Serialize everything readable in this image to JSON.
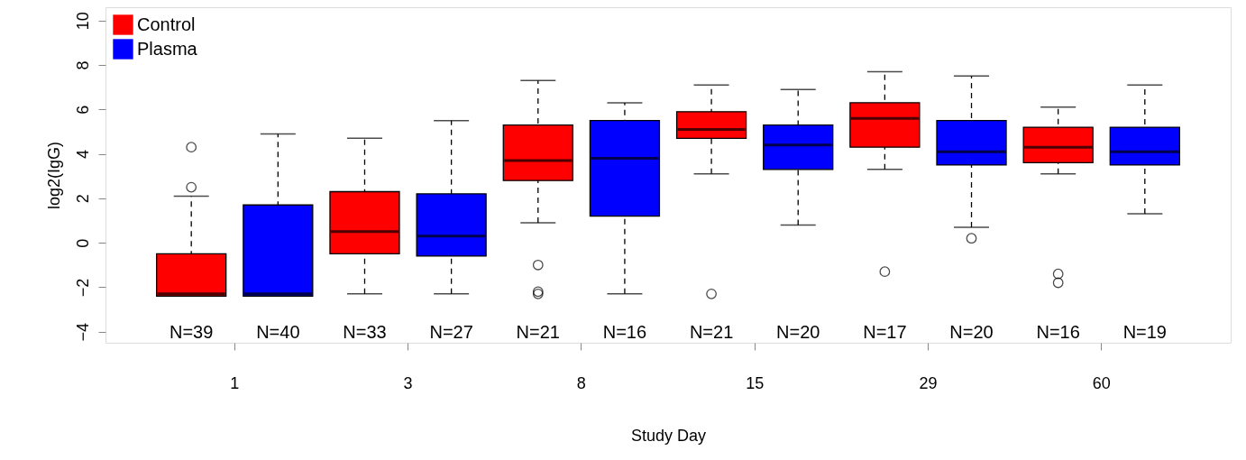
{
  "chart_data": {
    "type": "box",
    "xlabel": "Study Day",
    "ylabel": "log2(IgG)",
    "categories": [
      "1",
      "3",
      "8",
      "15",
      "29",
      "60"
    ],
    "ylim": [
      -4.5,
      10.6
    ],
    "yticks": [
      -4,
      -2,
      0,
      2,
      4,
      6,
      8,
      10
    ],
    "grid": false,
    "legend": "top left",
    "series": [
      {
        "name": "Control",
        "color": "#ff0000",
        "value_labels": [
          "N=39",
          "N=33",
          "N=21",
          "N=21",
          "N=17",
          "N=16"
        ],
        "boxes": [
          {
            "low": -2.4,
            "q1": -2.4,
            "median": -2.3,
            "q3": -0.5,
            "high": 2.1,
            "outliers": [
              4.3,
              2.5
            ]
          },
          {
            "low": -2.3,
            "q1": -0.5,
            "median": 0.5,
            "q3": 2.3,
            "high": 4.7
          },
          {
            "low": 0.9,
            "q1": 2.8,
            "median": 3.7,
            "q3": 5.3,
            "high": 7.3,
            "outliers": [
              -1.0,
              -2.2,
              -2.3
            ]
          },
          {
            "low": 3.1,
            "q1": 4.7,
            "median": 5.1,
            "q3": 5.9,
            "high": 7.1,
            "outliers": [
              -2.3
            ]
          },
          {
            "low": 3.3,
            "q1": 4.3,
            "median": 5.6,
            "q3": 6.3,
            "high": 7.7,
            "outliers": [
              -1.3
            ]
          },
          {
            "low": 3.1,
            "q1": 3.6,
            "median": 4.3,
            "q3": 5.2,
            "high": 6.1,
            "outliers": [
              -1.4,
              -1.8
            ]
          }
        ]
      },
      {
        "name": "Plasma",
        "color": "#0000ff",
        "value_labels": [
          "N=40",
          "N=27",
          "N=16",
          "N=20",
          "N=20",
          "N=19"
        ],
        "boxes": [
          {
            "low": -2.4,
            "q1": -2.4,
            "median": -2.3,
            "q3": 1.7,
            "high": 4.9
          },
          {
            "low": -2.3,
            "q1": -0.6,
            "median": 0.3,
            "q3": 2.2,
            "high": 5.5
          },
          {
            "low": -2.3,
            "q1": 1.2,
            "median": 3.8,
            "q3": 5.5,
            "high": 6.3
          },
          {
            "low": 0.8,
            "q1": 3.3,
            "median": 4.4,
            "q3": 5.3,
            "high": 6.9
          },
          {
            "low": 0.7,
            "q1": 3.5,
            "median": 4.1,
            "q3": 5.5,
            "high": 7.5,
            "outliers": [
              0.2
            ]
          },
          {
            "low": 1.3,
            "q1": 3.5,
            "median": 4.1,
            "q3": 5.2,
            "high": 7.1
          }
        ]
      }
    ]
  }
}
